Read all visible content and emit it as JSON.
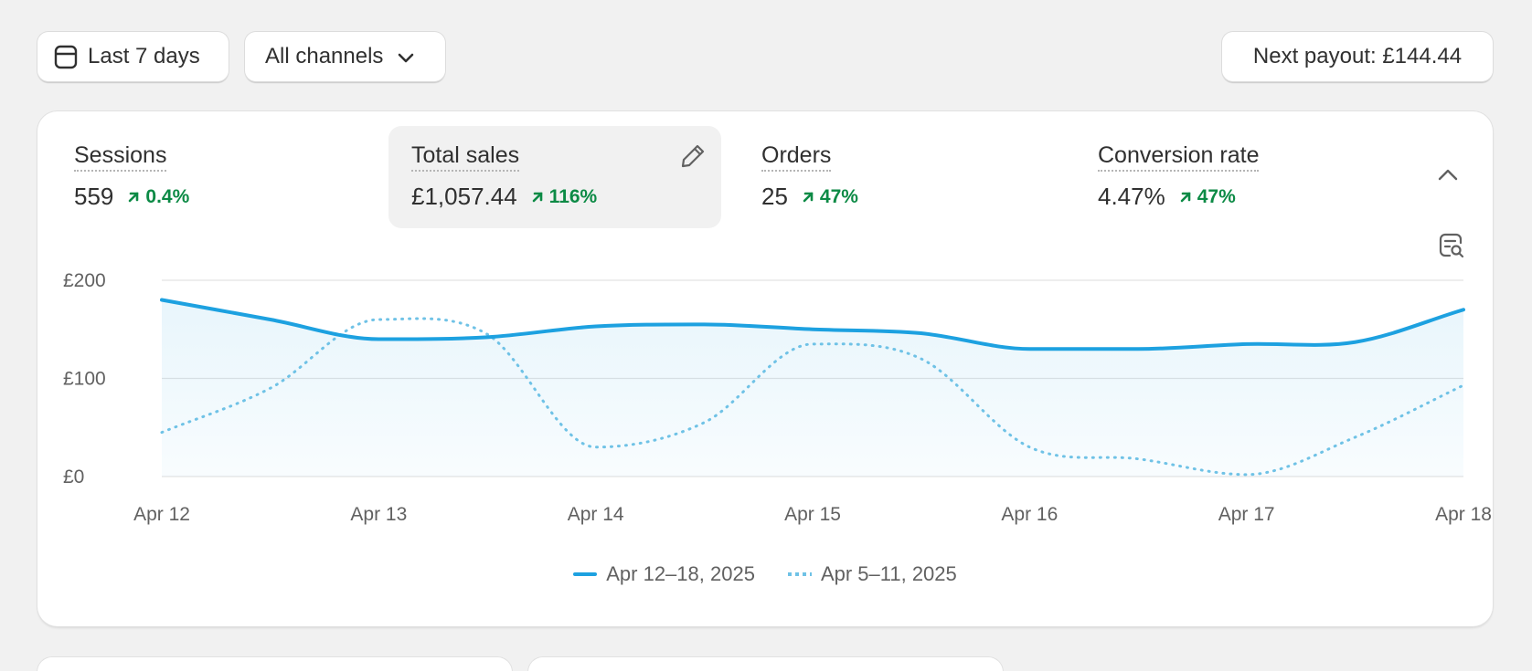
{
  "toolbar": {
    "date_label": "Last 7 days",
    "channels_label": "All channels",
    "payout_label": "Next payout: £144.44"
  },
  "metrics": [
    {
      "label": "Sessions",
      "value": "559",
      "change": "0.4%"
    },
    {
      "label": "Total sales",
      "value": "£1,057.44",
      "change": "116%"
    },
    {
      "label": "Orders",
      "value": "25",
      "change": "47%"
    },
    {
      "label": "Conversion rate",
      "value": "4.47%",
      "change": "47%"
    }
  ],
  "icons": {
    "date": "calendar-icon",
    "channels": "chevron-down-icon",
    "edit": "pencil-icon",
    "collapse": "chevron-up-icon",
    "explore": "explore-report-icon",
    "trend": "arrow-up-right-icon"
  },
  "colors": {
    "current_series": "#1da1e0",
    "previous_series": "#6fc2e6",
    "positive_change": "#0c8a45"
  },
  "chart_data": {
    "type": "line",
    "ylim": [
      0,
      200
    ],
    "y_ticks": [
      {
        "value": 0,
        "label": "£0"
      },
      {
        "value": 100,
        "label": "£100"
      },
      {
        "value": 200,
        "label": "£200"
      }
    ],
    "x": [
      "Apr 12",
      "",
      "Apr 13",
      "",
      "Apr 14",
      "",
      "Apr 15",
      "",
      "Apr 16",
      "",
      "Apr 17",
      "",
      "Apr 18"
    ],
    "x_tick_labels": [
      "Apr 12",
      "Apr 13",
      "Apr 14",
      "Apr 15",
      "Apr 16",
      "Apr 17"
    ],
    "grid": true,
    "legend_position": "bottom-center",
    "series": [
      {
        "name": "Apr 12–18, 2025",
        "style": "solid",
        "values": [
          180,
          160,
          140,
          142,
          153,
          155,
          150,
          146,
          130,
          130,
          135,
          137,
          170
        ]
      },
      {
        "name": "Apr 5–11, 2025",
        "style": "dotted",
        "values": [
          45,
          90,
          160,
          145,
          30,
          55,
          135,
          120,
          30,
          18,
          2,
          40,
          93
        ]
      }
    ]
  }
}
